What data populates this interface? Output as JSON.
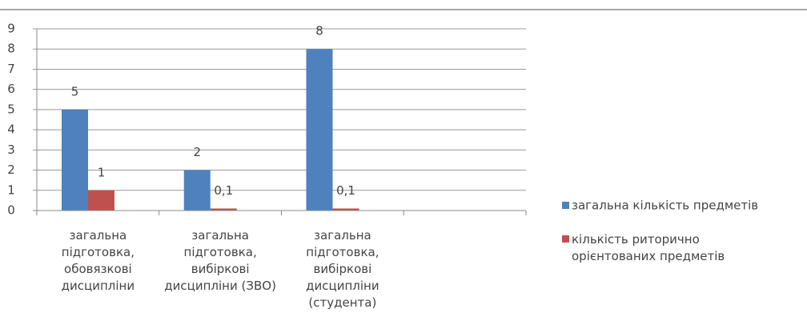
{
  "chart_data": {
    "type": "bar",
    "categories": [
      "загальна\nпідготовка,\nобовязкові\nдисципліни",
      "загальна\nпідготовка,\nвибіркові\nдисципліни (ЗВО)",
      "загальна\nпідготовка,\nвибіркові\nдисципліни\n(студента)",
      null
    ],
    "series": [
      {
        "name": "загальна кількість предметів",
        "color": "#4f81bd",
        "values": [
          5,
          2,
          8,
          null
        ]
      },
      {
        "name": "кількість риторично\nорієнтованих предметів",
        "color": "#c0504d",
        "values": [
          1,
          0.1,
          0.1,
          null
        ],
        "value_labels": [
          "1",
          "0,1",
          "0,1",
          null
        ]
      }
    ],
    "ylim": [
      0,
      9
    ],
    "yticks": [
      0,
      1,
      2,
      3,
      4,
      5,
      6,
      7,
      8,
      9
    ],
    "grid": true,
    "legend": "right"
  }
}
